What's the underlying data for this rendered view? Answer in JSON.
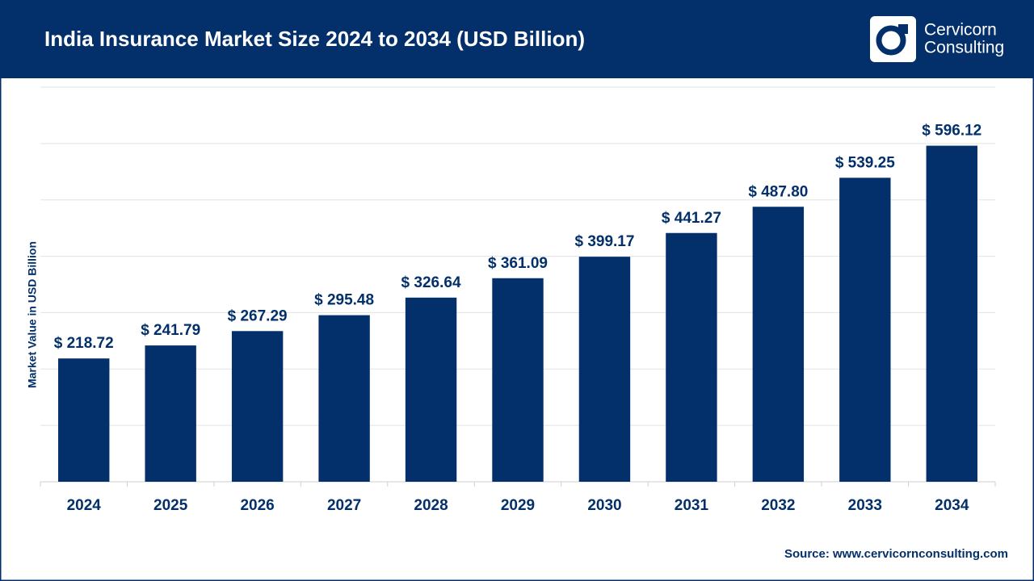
{
  "chart_data": {
    "type": "bar",
    "title": "India Insurance Market Size 2024 to 2034 (USD Billion)",
    "y_label": "Market Value in USD Billion",
    "categories": [
      "2024",
      "2025",
      "2026",
      "2027",
      "2028",
      "2029",
      "2030",
      "2031",
      "2032",
      "2033",
      "2034"
    ],
    "values": [
      218.72,
      241.79,
      267.29,
      295.48,
      326.64,
      361.09,
      399.17,
      441.27,
      487.8,
      539.25,
      596.12
    ],
    "value_labels": [
      "$ 218.72",
      "$ 241.79",
      "$ 267.29",
      "$ 295.48",
      "$ 326.64",
      "$ 361.09",
      "$ 399.17",
      "$ 441.27",
      "$ 487.80",
      "$ 539.25",
      "$ 596.12"
    ],
    "color": "#03306b",
    "ylim": [
      0,
      700
    ],
    "yticks": [
      0,
      100,
      200,
      300,
      400,
      500,
      600,
      700
    ],
    "grid": true,
    "source": "Source: www.cervicornconsulting.com"
  },
  "logo": {
    "lines": [
      "Cervicorn",
      "Consulting"
    ]
  }
}
